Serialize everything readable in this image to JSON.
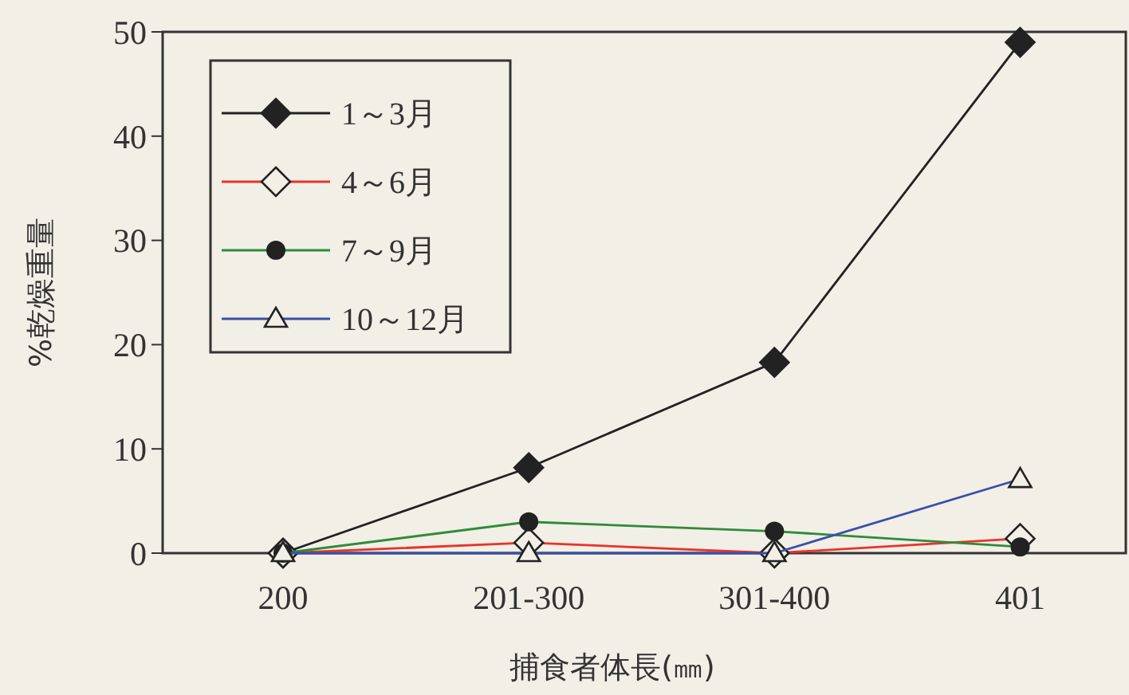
{
  "chart_data": {
    "type": "line",
    "xlabel": "捕食者体長(㎜)",
    "ylabel": "%乾燥重量",
    "categories": [
      "200",
      "201-300",
      "301-400",
      "401"
    ],
    "series": [
      {
        "name": "1～3月",
        "color": "#222222",
        "marker": "diamond",
        "values": [
          0,
          8.2,
          18.3,
          49
        ]
      },
      {
        "name": "4～6月",
        "color": "#e8332a",
        "marker": "diamond",
        "values": [
          0,
          1.0,
          0,
          1.4
        ]
      },
      {
        "name": "7～9月",
        "color": "#2e8b3a",
        "marker": "circle",
        "values": [
          0,
          3.0,
          2.1,
          0.6
        ]
      },
      {
        "name": "10～12月",
        "color": "#3a4fa8",
        "marker": "triangle",
        "values": [
          0,
          0,
          0,
          7.1
        ]
      }
    ],
    "ylim": [
      0,
      50
    ],
    "yticks": [
      0,
      10,
      20,
      30,
      40,
      50
    ],
    "grid": false,
    "legend": "top left"
  }
}
